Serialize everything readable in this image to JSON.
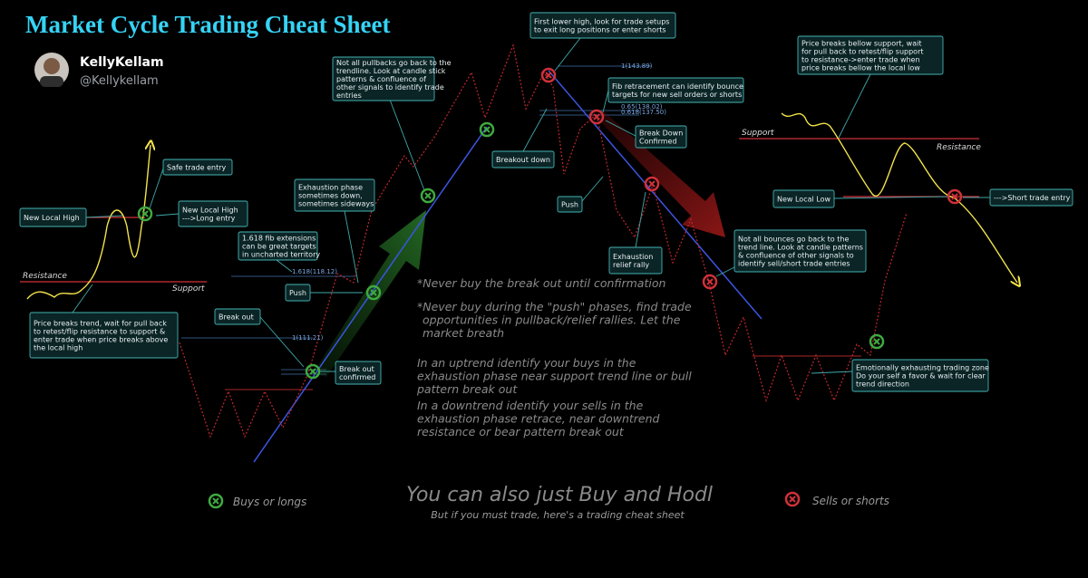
{
  "header": {
    "title": "Market Cycle Trading Cheat Sheet",
    "name": "KellyKellam",
    "handle": "@Kellykellam"
  },
  "callouts": [
    {
      "lines": [
        "New Local High"
      ]
    },
    {
      "lines": [
        "Safe trade entry"
      ]
    },
    {
      "lines": [
        "New Local High",
        "--->Long entry"
      ]
    },
    {
      "lines": [
        "Price breaks trend, wait for pull back",
        "to retest/flip resistance to support &",
        "enter trade when price breaks above",
        "the local high"
      ]
    },
    {
      "lines": [
        "1.618 fib extensions",
        "can be great targets",
        "in uncharted territory"
      ]
    },
    {
      "lines": [
        "Exhaustion phase",
        "sometimes down,",
        "sometimes sideways"
      ]
    },
    {
      "lines": [
        "Push"
      ]
    },
    {
      "lines": [
        "Break out"
      ]
    },
    {
      "lines": [
        "Break out",
        "confirmed"
      ]
    },
    {
      "lines": [
        "Not all pullbacks go back to the",
        "trendline. Look at candle stick",
        "patterns & confluence of",
        "other signals to identify trade",
        "entries"
      ]
    },
    {
      "lines": [
        "First lower high, look for trade setups",
        "to exit long positions or enter shorts"
      ]
    },
    {
      "lines": [
        "Fib retracement can identify bounce",
        "targets for new sell orders or shorts"
      ]
    },
    {
      "lines": [
        "Break Down",
        "Confirmed"
      ]
    },
    {
      "lines": [
        "Breakout down"
      ]
    },
    {
      "lines": [
        "Push"
      ]
    },
    {
      "lines": [
        "Exhaustion",
        "relief rally"
      ]
    },
    {
      "lines": [
        "Not all bounces go back to the",
        "trend line. Look at candle patterns",
        "& confluence of other signals to",
        "identify sell/short trade entries"
      ]
    },
    {
      "lines": [
        "Price breaks bellow support, wait",
        "for pull back to retest/flip support",
        "to resistance->enter trade when",
        "price breaks bellow the local low"
      ]
    },
    {
      "lines": [
        "New Local Low"
      ]
    },
    {
      "lines": [
        "--->Short trade entry"
      ]
    },
    {
      "lines": [
        "Emotionally exhausting trading zone",
        "Do your self a favor & wait for clear",
        "trend direction"
      ]
    }
  ],
  "labels": [
    "Resistance",
    "Support",
    "Support",
    "Resistance"
  ],
  "fib_labels": [
    "1.618(118.12)",
    "1(111.21)",
    "1(143.89)",
    "0.65(138.02)",
    "0.618(137.50)"
  ],
  "notes": [
    {
      "lines": [
        "*Never buy the break out until confirmation"
      ]
    },
    {
      "lines": [
        "*Never buy during the \"push\" phases, find trade",
        "opportunities in pullback/relief rallies. Let the",
        "market breath"
      ]
    },
    {
      "lines": [
        "In an uptrend identify your buys in the",
        "exhaustion phase near support trend line or bull",
        "pattern break out"
      ]
    },
    {
      "lines": [
        "In a downtrend identify your sells in the",
        "exhaustion phase retrace, near downtrend",
        "resistance or bear pattern break out"
      ]
    }
  ],
  "footer": {
    "headline": "You can also just Buy and Hodl",
    "subline": "But if you must trade, here's a trading cheat sheet",
    "legend_buy": "Buys or longs",
    "legend_sell": "Sells or shorts"
  }
}
